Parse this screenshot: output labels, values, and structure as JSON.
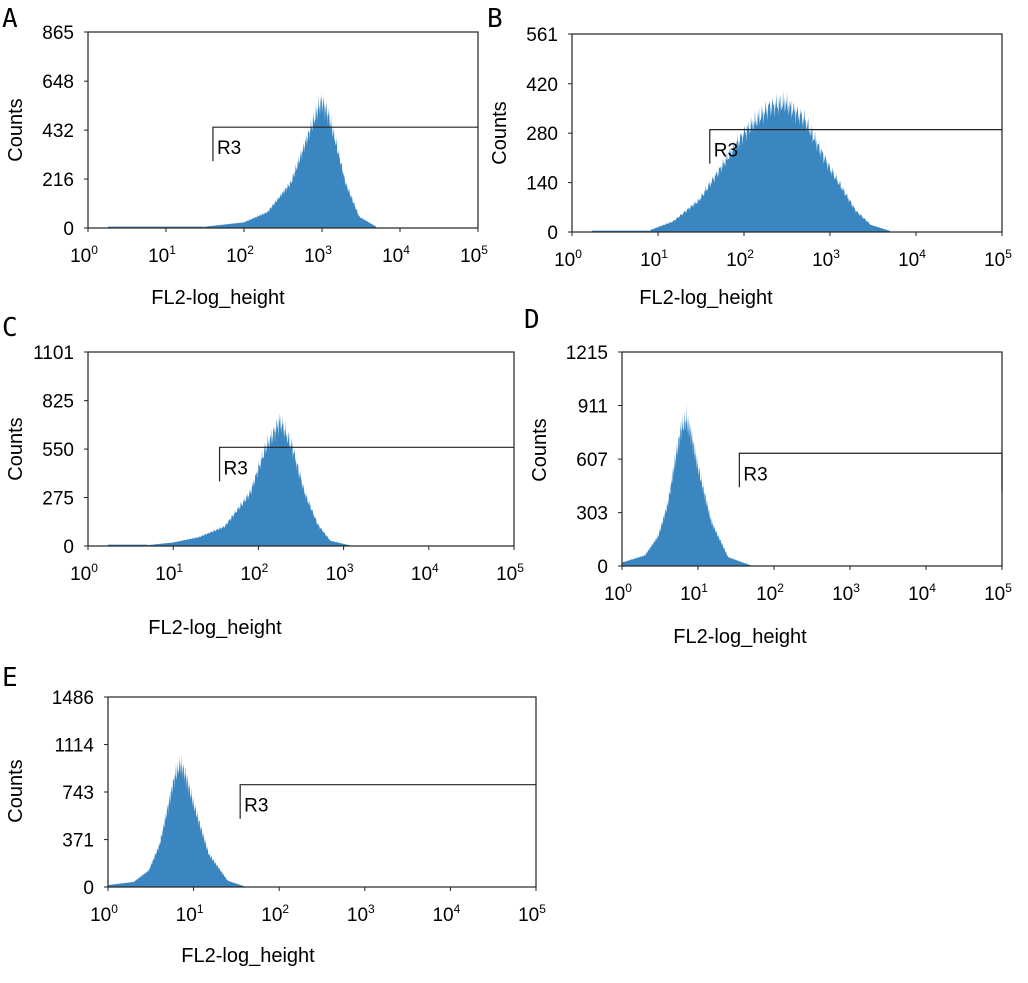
{
  "colors": {
    "histogram": "#3a86c0",
    "axis": "#222222"
  },
  "chart_data": [
    {
      "type": "area",
      "panel": "A",
      "xlabel": "FL2-log_height",
      "ylabel": "Counts",
      "x_scale": "log",
      "xlim": [
        1,
        100000
      ],
      "ylim": [
        0,
        865
      ],
      "yticks": [
        0,
        216,
        432,
        648,
        865
      ],
      "xticks": [
        "10^0",
        "10^1",
        "10^2",
        "10^3",
        "10^4",
        "10^5"
      ],
      "gate": {
        "name": "R3",
        "x_start": 40,
        "x_end": 100000,
        "count_level": 445
      },
      "peak": {
        "x": 1000,
        "counts": 560
      },
      "x": [
        30,
        100,
        200,
        400,
        700,
        900,
        1000,
        1200,
        1500,
        2000,
        3000,
        5000
      ],
      "values": [
        5,
        25,
        70,
        200,
        430,
        530,
        560,
        500,
        380,
        200,
        50,
        5
      ]
    },
    {
      "type": "area",
      "panel": "B",
      "xlabel": "FL2-log_height",
      "ylabel": "Counts",
      "x_scale": "log",
      "xlim": [
        1,
        100000
      ],
      "ylim": [
        0,
        561
      ],
      "yticks": [
        0,
        140,
        280,
        420,
        561
      ],
      "xticks": [
        "10^0",
        "10^1",
        "10^2",
        "10^3",
        "10^4",
        "10^5"
      ],
      "gate": {
        "name": "R3",
        "x_start": 40,
        "x_end": 100000,
        "count_level": 290
      },
      "peak": {
        "x": 250,
        "counts": 370
      },
      "x": [
        8,
        15,
        30,
        50,
        100,
        200,
        300,
        500,
        1000,
        2000,
        3000,
        5000
      ],
      "values": [
        5,
        30,
        90,
        170,
        280,
        355,
        365,
        320,
        180,
        60,
        20,
        3
      ]
    },
    {
      "type": "area",
      "panel": "C",
      "xlabel": "FL2-log_height",
      "ylabel": "Counts",
      "x_scale": "log",
      "xlim": [
        1,
        100000
      ],
      "ylim": [
        0,
        1101
      ],
      "yticks": [
        0,
        275,
        550,
        825,
        1101
      ],
      "xticks": [
        "10^0",
        "10^1",
        "10^2",
        "10^3",
        "10^4",
        "10^5"
      ],
      "gate": {
        "name": "R3",
        "x_start": 35,
        "x_end": 100000,
        "count_level": 560
      },
      "peak": {
        "x": 180,
        "counts": 710
      },
      "x": [
        5,
        10,
        20,
        40,
        80,
        120,
        180,
        250,
        350,
        500,
        700,
        1200
      ],
      "values": [
        5,
        20,
        50,
        110,
        300,
        550,
        710,
        560,
        300,
        120,
        30,
        3
      ]
    },
    {
      "type": "area",
      "panel": "D",
      "xlabel": "FL2-log_height",
      "ylabel": "Counts",
      "x_scale": "log",
      "xlim": [
        1,
        100000
      ],
      "ylim": [
        0,
        1215
      ],
      "yticks": [
        0,
        303,
        607,
        911,
        1215
      ],
      "xticks": [
        "10^0",
        "10^1",
        "10^2",
        "10^3",
        "10^4",
        "10^5"
      ],
      "gate": {
        "name": "R3",
        "x_start": 35,
        "x_end": 100000,
        "count_level": 640
      },
      "peak": {
        "x": 7,
        "counts": 830
      },
      "x": [
        1,
        2,
        3,
        4,
        5,
        6,
        7,
        8,
        10,
        15,
        25,
        50
      ],
      "values": [
        20,
        60,
        170,
        350,
        600,
        780,
        830,
        760,
        560,
        250,
        50,
        3
      ]
    },
    {
      "type": "area",
      "panel": "E",
      "xlabel": "FL2-log_height",
      "ylabel": "Counts",
      "x_scale": "log",
      "xlim": [
        1,
        100000
      ],
      "ylim": [
        0,
        1486
      ],
      "yticks": [
        0,
        371,
        743,
        1114,
        1486
      ],
      "xticks": [
        "10^0",
        "10^1",
        "10^2",
        "10^3",
        "10^4",
        "10^5"
      ],
      "gate": {
        "name": "R3",
        "x_start": 35,
        "x_end": 100000,
        "count_level": 800
      },
      "peak": {
        "x": 7,
        "counts": 960
      },
      "x": [
        1,
        2,
        3,
        4,
        5,
        6,
        7,
        8,
        10,
        15,
        25,
        40
      ],
      "values": [
        15,
        40,
        130,
        330,
        620,
        860,
        960,
        880,
        650,
        260,
        50,
        3
      ]
    }
  ]
}
